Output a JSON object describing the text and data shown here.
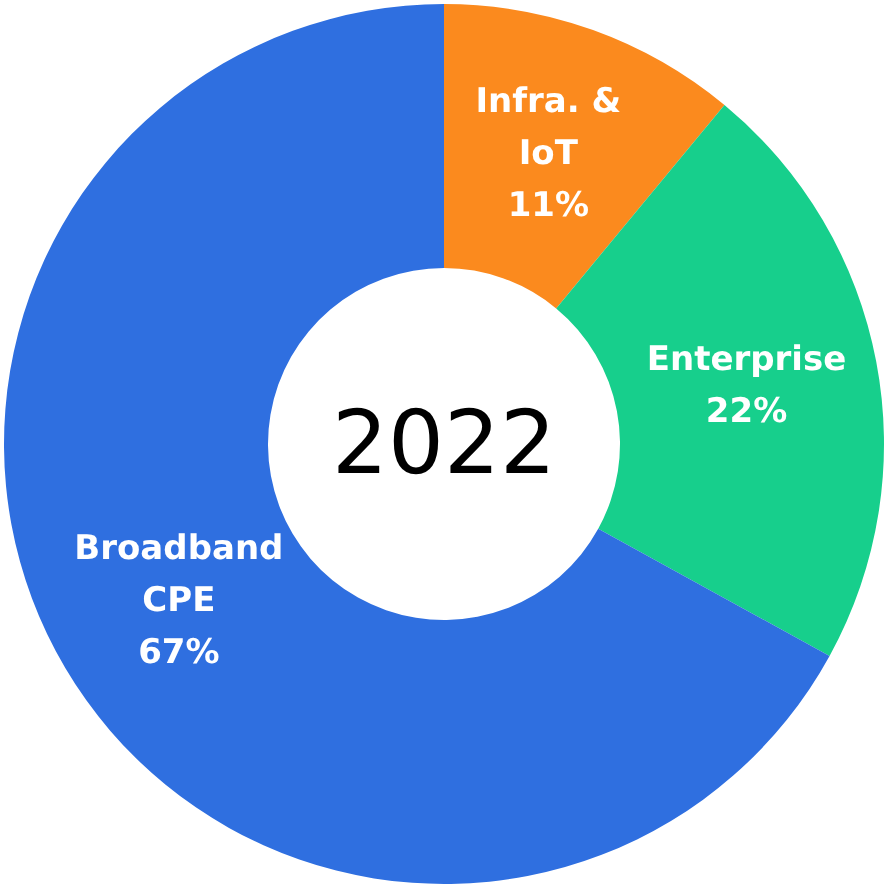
{
  "chart_data": {
    "type": "donut",
    "title": "2022",
    "legend": false,
    "categories": [
      "Infra. & IoT",
      "Enterprise",
      "Broadband CPE"
    ],
    "values": [
      11,
      22,
      67
    ],
    "value_labels": [
      "11%",
      "22%",
      "67%"
    ],
    "colors": [
      "#fb8a1e",
      "#17cf8c",
      "#2f6fe0"
    ]
  }
}
